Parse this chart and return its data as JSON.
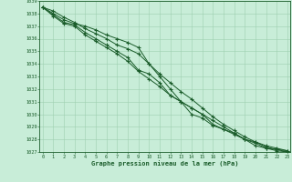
{
  "title": "Graphe pression niveau de la mer (hPa)",
  "xlim": [
    -0.3,
    23.3
  ],
  "ylim": [
    1027,
    1039
  ],
  "yticks": [
    1027,
    1028,
    1029,
    1030,
    1031,
    1032,
    1033,
    1034,
    1035,
    1036,
    1037,
    1038,
    1039
  ],
  "xticks": [
    0,
    1,
    2,
    3,
    4,
    5,
    6,
    7,
    8,
    9,
    10,
    11,
    12,
    13,
    14,
    15,
    16,
    17,
    18,
    19,
    20,
    21,
    22,
    23
  ],
  "background_color": "#c8edd8",
  "grid_color": "#9ecfb0",
  "line_color": "#1a5c2a",
  "marker": "+",
  "series": [
    [
      1038.5,
      1038.0,
      1037.5,
      1037.2,
      1037.0,
      1036.7,
      1036.3,
      1036.0,
      1035.7,
      1035.3,
      1034.0,
      1033.0,
      1032.0,
      1031.0,
      1030.5,
      1030.0,
      1029.5,
      1029.0,
      1028.5,
      1028.0,
      1027.5,
      1027.3,
      1027.2,
      1027.1
    ],
    [
      1038.5,
      1038.2,
      1037.7,
      1037.3,
      1036.8,
      1036.4,
      1036.0,
      1035.5,
      1035.2,
      1034.8,
      1034.0,
      1033.2,
      1032.5,
      1031.8,
      1031.2,
      1030.5,
      1029.8,
      1029.2,
      1028.7,
      1028.2,
      1027.8,
      1027.5,
      1027.3,
      1027.1
    ],
    [
      1038.5,
      1037.9,
      1037.3,
      1037.1,
      1036.5,
      1036.0,
      1035.5,
      1035.0,
      1034.5,
      1033.5,
      1033.2,
      1032.5,
      1031.5,
      1031.0,
      1030.5,
      1030.0,
      1029.2,
      1028.8,
      1028.5,
      1028.0,
      1027.8,
      1027.4,
      1027.2,
      1027.0
    ],
    [
      1038.5,
      1037.8,
      1037.2,
      1037.0,
      1036.3,
      1035.8,
      1035.3,
      1034.8,
      1034.2,
      1033.4,
      1032.8,
      1032.2,
      1031.5,
      1031.0,
      1030.0,
      1029.7,
      1029.1,
      1028.8,
      1028.4,
      1028.0,
      1027.7,
      1027.3,
      1027.1,
      1027.0
    ]
  ]
}
